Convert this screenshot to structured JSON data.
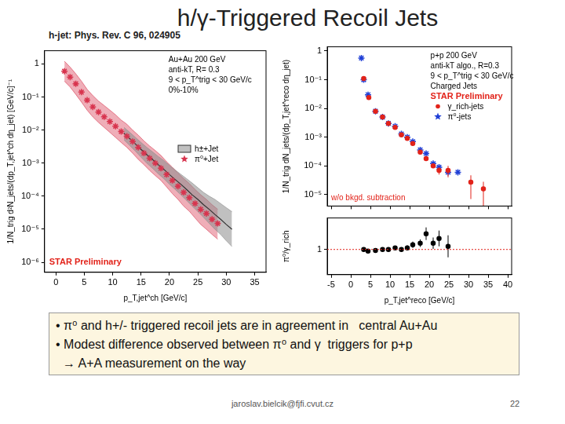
{
  "title": "h/γ-Triggered Recoil Jets",
  "subtitle": "h-jet: Phys. Rev. C 96, 024905",
  "chart_data": [
    {
      "type": "line",
      "log": "y",
      "grid": false,
      "legend": "right",
      "xlabel": "p_T,jet^ch [GeV/c]",
      "ylabel": "1/N_trig d²N_jets/(dp_T,jet^ch dη_jet) [GeV/c]⁻¹",
      "annotations": [
        "Au+Au 200 GeV",
        "anti-kT, R= 0.3",
        "9 < p_T^trig < 30 GeV/c",
        "0%-10%"
      ],
      "preliminary": "STAR Preliminary",
      "xlim": [
        -2,
        37
      ],
      "xticks": [
        0,
        5,
        10,
        15,
        20,
        25,
        30,
        35
      ],
      "ylim": [
        5e-07,
        2.5
      ],
      "yticks": [
        {
          "value": 1e-06,
          "label": "10⁻⁶"
        },
        {
          "value": 1e-05,
          "label": "10⁻⁵"
        },
        {
          "value": 0.0001,
          "label": "10⁻⁴"
        },
        {
          "value": 0.001,
          "label": "10⁻³"
        },
        {
          "value": 0.01,
          "label": "10⁻²"
        },
        {
          "value": 0.1,
          "label": "10⁻¹"
        },
        1
      ],
      "series": [
        {
          "name": "h±+Jet",
          "type": "band",
          "color": "#8c8c8c",
          "x": [
            12,
            13,
            14,
            15,
            16,
            17,
            18,
            19,
            20,
            21,
            22,
            23,
            24,
            25,
            26,
            27,
            28,
            29,
            30,
            31
          ],
          "values": [
            0.008,
            0.0055,
            0.0038,
            0.0026,
            0.0018,
            0.0013,
            0.0009,
            0.00065,
            0.00045,
            0.00032,
            0.00023,
            0.00016,
            0.00011,
            8e-05,
            5.5e-05,
            4e-05,
            2.8e-05,
            2e-05,
            1.4e-05,
            1e-05
          ],
          "low": [
            0.005,
            0.0034,
            0.0023,
            0.0015,
            0.001,
            0.0007,
            0.00048,
            0.00034,
            0.00023,
            0.00016,
            0.00011,
            7.5e-05,
            5e-05,
            3.4e-05,
            2.3e-05,
            1.5e-05,
            1e-05,
            7e-06,
            4.5e-06,
            3e-06
          ],
          "high": [
            0.012,
            0.0085,
            0.006,
            0.0042,
            0.003,
            0.0022,
            0.0016,
            0.0012,
            0.00085,
            0.00062,
            0.00046,
            0.00034,
            0.00025,
            0.00018,
            0.00013,
            0.0001,
            8e-05,
            6e-05,
            4.5e-05,
            3.4e-05
          ]
        },
        {
          "name": "π⁰+Jet",
          "type": "scatter",
          "marker": "star",
          "color": "#d8344e",
          "x": [
            1.5,
            2.5,
            3.5,
            4.5,
            5.5,
            6.5,
            7.5,
            8.5,
            9.5,
            10.5,
            11.5,
            12.5,
            13.5,
            14.5,
            15.5,
            16.5,
            17.5,
            18.5,
            19.5,
            20.5,
            21.5,
            22.5,
            23.5,
            24.5,
            25.5,
            26.5,
            27.5,
            28.5
          ],
          "values": [
            0.6,
            0.4,
            0.25,
            0.14,
            0.08,
            0.05,
            0.035,
            0.025,
            0.018,
            0.013,
            0.009,
            0.0065,
            0.0045,
            0.003,
            0.002,
            0.0014,
            0.001,
            0.0007,
            0.00045,
            0.0003,
            0.0002,
            0.00013,
            9e-05,
            6e-05,
            4e-05,
            3e-05,
            2e-05,
            1.5e-05
          ],
          "low": [
            0.3,
            0.2,
            0.12,
            0.07,
            0.04,
            0.025,
            0.017,
            0.012,
            0.0085,
            0.006,
            0.0042,
            0.003,
            0.002,
            0.0013,
            0.0009,
            0.0006,
            0.00042,
            0.0003,
            0.00019,
            0.00012,
            8e-05,
            5e-05,
            3.5e-05,
            2.2e-05,
            1.4e-05,
            1e-05,
            7e-06,
            5e-06
          ],
          "high": [
            1.2,
            0.8,
            0.5,
            0.3,
            0.17,
            0.11,
            0.075,
            0.055,
            0.04,
            0.029,
            0.02,
            0.015,
            0.01,
            0.007,
            0.0047,
            0.0033,
            0.0024,
            0.0017,
            0.0011,
            0.00075,
            0.0005,
            0.00034,
            0.00024,
            0.00016,
            0.00011,
            8e-05,
            5.5e-05,
            4e-05
          ]
        }
      ]
    },
    {
      "type": "line",
      "log": "y",
      "grid": false,
      "legend": "top right",
      "tick_labels": "y",
      "ylabel": "1/N_trig dN_jets/(dp_T,jet^reco dη_jet)",
      "annotations": [
        "p+p 200 GeV",
        "anti-kT algo., R=0.3",
        "9 < p_T^trig < 30 GeV/c",
        "Charged Jets"
      ],
      "preliminary": "STAR Preliminary",
      "note": "w/o bkgd. subtraction",
      "xlim": [
        -6,
        41
      ],
      "xticks": [
        -5,
        0,
        5,
        10,
        15,
        20,
        25,
        30,
        35,
        40
      ],
      "ylim": [
        4e-06,
        1.4
      ],
      "yticks": [
        {
          "value": 1e-05,
          "label": "10⁻⁵"
        },
        {
          "value": 0.0001,
          "label": "10⁻⁴"
        },
        {
          "value": 0.001,
          "label": "10⁻³"
        },
        {
          "value": 0.01,
          "label": "10⁻²"
        },
        {
          "value": 0.1,
          "label": "10⁻¹"
        },
        1
      ],
      "series": [
        {
          "name": "γ_rich-jets",
          "type": "scatter",
          "marker": "circle",
          "color": "#e2231a",
          "x": [
            3.3,
            4.6,
            6.3,
            8.1,
            9.6,
            11.3,
            12.9,
            14.4,
            15.8,
            17.7,
            19.2,
            21,
            22.5,
            24.8,
            30.6,
            33.8
          ],
          "values": [
            0.11,
            0.024,
            0.008,
            0.005,
            0.003,
            0.0022,
            0.0012,
            0.0009,
            0.0006,
            0.0003,
            0.00018,
            0.0001,
            7e-05,
            7e-05,
            2.7e-05,
            1.6e-05
          ],
          "errors": [
            0.005,
            0.001,
            0.0003,
            0.0002,
            0.0001,
            0.0001,
            6e-05,
            5e-05,
            4e-05,
            3e-05,
            2e-05,
            1.5e-05,
            2e-05,
            3e-05,
            2e-05,
            1.2e-05
          ]
        },
        {
          "name": "π⁰-jets",
          "type": "scatter",
          "marker": "star",
          "color": "#1f3fd6",
          "x": [
            2.7,
            3.3,
            4.4,
            6.3,
            8.1,
            9.6,
            11.3,
            12.9,
            14.4,
            15.8,
            17.7,
            19.2,
            21,
            22.5,
            24.8,
            27.3
          ],
          "values": [
            0.57,
            0.1,
            0.03,
            0.008,
            0.005,
            0.003,
            0.0024,
            0.0013,
            0.001,
            0.0007,
            0.00036,
            0.00027,
            0.00012,
            9e-05,
            6e-05,
            6e-05
          ]
        }
      ]
    },
    {
      "type": "line",
      "grid": false,
      "xlabel": "p_T,jet^reco [GeV/c]",
      "ylabel": "π⁰/γ_rich",
      "xlim": [
        -6,
        41
      ],
      "xticks": [
        -5,
        0,
        5,
        10,
        15,
        20,
        25,
        30,
        35,
        40
      ],
      "ylim": [
        0.2,
        2
      ],
      "yticks": [
        1
      ],
      "reference": 1,
      "series": [
        {
          "type": "scatter",
          "marker": "circle",
          "color": "#000000",
          "x": [
            3.3,
            4.4,
            6.3,
            8.1,
            9.6,
            11.3,
            12.9,
            14.4,
            15.8,
            17.7,
            19.2,
            21,
            22.5,
            24.8
          ],
          "values": [
            1.0,
            0.95,
            0.97,
            1.0,
            1.0,
            1.05,
            1.0,
            1.05,
            1.15,
            1.2,
            1.5,
            1.2,
            1.35,
            1.1
          ],
          "errors": [
            0.03,
            0.03,
            0.03,
            0.04,
            0.05,
            0.06,
            0.07,
            0.08,
            0.1,
            0.12,
            0.2,
            0.18,
            0.25,
            0.35
          ]
        }
      ]
    }
  ],
  "bullets": [
    "• π⁰ and h+/- triggered recoil jets are in agreement in   central Au+Au",
    "• Modest difference observed between π⁰ and γ  triggers for p+p",
    "  → A+A measurement on the way"
  ],
  "footer": {
    "email": "jaroslav.bielcik@fjfi.cvut.cz",
    "page": 22
  }
}
